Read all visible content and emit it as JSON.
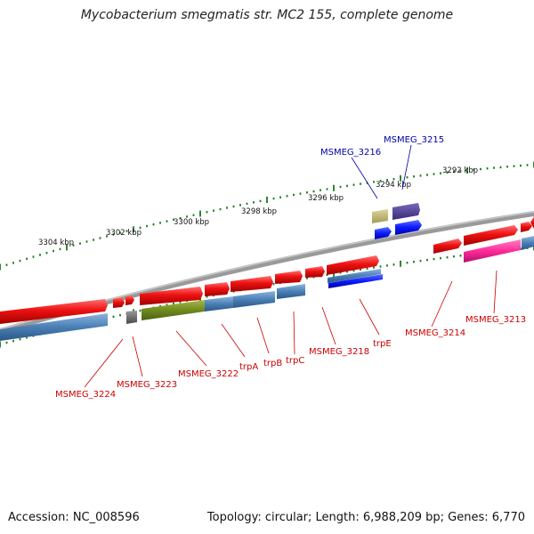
{
  "title": "Mycobacterium smegmatis str. MC2 155, complete genome",
  "footer": {
    "accession": "Accession: NC_008596",
    "summary": "Topology: circular; Length: 6,988,209 bp; Genes: 6,770"
  },
  "colors": {
    "backbone": "#8a8a8a",
    "tick": "#1a7a1a",
    "forward_gene": "#ee1111",
    "reverse_cds": "#4a7fb5",
    "label_red": "#cc0000",
    "label_blue": "#0000aa"
  },
  "scale_labels": [
    "3304 kbp",
    "3302 kbp",
    "3300 kbp",
    "3298 kbp",
    "3296 kbp",
    "3294 kbp",
    "3292 kbp"
  ],
  "gene_labels": {
    "msmeg_3216": "MSMEG_3216",
    "msmeg_3215": "MSMEG_3215",
    "msmeg_3224": "MSMEG_3224",
    "msmeg_3223": "MSMEG_3223",
    "msmeg_3222": "MSMEG_3222",
    "trpA": "trpA",
    "trpB": "trpB",
    "trpC": "trpC",
    "msmeg_3218": "MSMEG_3218",
    "trpE": "trpE",
    "msmeg_3214": "MSMEG_3214",
    "msmeg_3213": "MSMEG_3213"
  }
}
